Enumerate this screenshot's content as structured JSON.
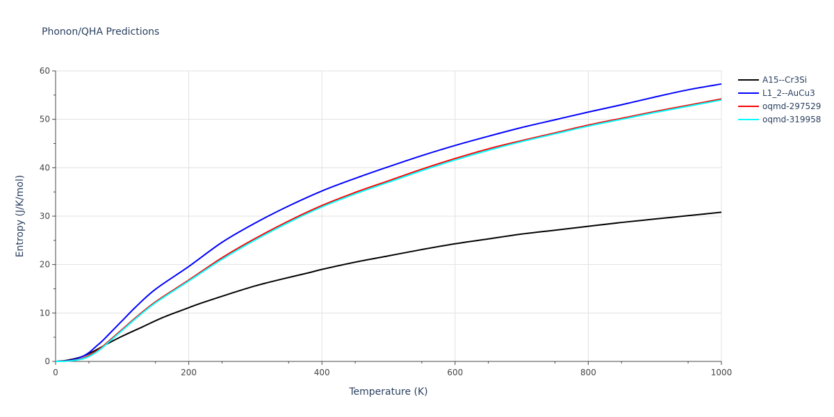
{
  "chart_data": {
    "type": "line",
    "title": "Phonon/QHA Predictions",
    "xlabel": "Temperature (K)",
    "ylabel": "Entropy (J/K/mol)",
    "xlim": [
      0,
      1000
    ],
    "ylim": [
      0,
      60
    ],
    "x_ticks": [
      "0",
      "200",
      "400",
      "600",
      "800",
      "1000"
    ],
    "y_ticks": [
      "0",
      "10",
      "20",
      "30",
      "40",
      "50",
      "60"
    ],
    "grid": true,
    "legend_position": "top-right",
    "series": [
      {
        "name": "A15--Cr3Si",
        "color": "#000000",
        "x": [
          0,
          10,
          20,
          40,
          60,
          80,
          100,
          130,
          160,
          200,
          220,
          260,
          300,
          340,
          380,
          400,
          450,
          500,
          550,
          600,
          650,
          700,
          750,
          800,
          850,
          900,
          950,
          1000
        ],
        "y": [
          0,
          0.1,
          0.3,
          1.0,
          2.3,
          3.8,
          5.2,
          7.1,
          9.0,
          11.1,
          12.1,
          13.9,
          15.6,
          17.0,
          18.3,
          19.0,
          20.5,
          21.8,
          23.1,
          24.3,
          25.3,
          26.3,
          27.1,
          27.9,
          28.7,
          29.4,
          30.1,
          30.8
        ]
      },
      {
        "name": "L1_2--AuCu3",
        "color": "#0000ff",
        "x": [
          0,
          10,
          20,
          30,
          40,
          50,
          60,
          70,
          80,
          100,
          120,
          150,
          200,
          250,
          300,
          350,
          400,
          450,
          500,
          550,
          600,
          650,
          700,
          750,
          800,
          850,
          900,
          950,
          1000
        ],
        "y": [
          0,
          0.05,
          0.2,
          0.5,
          1.0,
          1.8,
          3.0,
          4.2,
          5.6,
          8.4,
          11.2,
          14.9,
          19.6,
          24.6,
          28.6,
          32.1,
          35.2,
          37.8,
          40.2,
          42.5,
          44.6,
          46.5,
          48.3,
          49.9,
          51.5,
          53.0,
          54.6,
          56.1,
          57.3
        ]
      },
      {
        "name": "oqmd-297529",
        "color": "#ff0000",
        "x": [
          0,
          10,
          20,
          30,
          40,
          50,
          60,
          70,
          80,
          100,
          120,
          150,
          200,
          250,
          300,
          350,
          400,
          450,
          500,
          550,
          600,
          650,
          700,
          750,
          800,
          850,
          900,
          950,
          1000
        ],
        "y": [
          0,
          0.03,
          0.1,
          0.3,
          0.6,
          1.2,
          2.0,
          3.0,
          4.2,
          6.6,
          9.0,
          12.3,
          16.8,
          21.4,
          25.4,
          29.0,
          32.2,
          34.9,
          37.3,
          39.7,
          41.9,
          43.9,
          45.6,
          47.2,
          48.8,
          50.2,
          51.6,
          52.9,
          54.2
        ]
      },
      {
        "name": "oqmd-319958",
        "color": "#00ffff",
        "x": [
          0,
          10,
          20,
          30,
          40,
          50,
          60,
          70,
          80,
          100,
          120,
          150,
          200,
          250,
          300,
          350,
          400,
          450,
          500,
          550,
          600,
          650,
          700,
          750,
          800,
          850,
          900,
          950,
          1000
        ],
        "y": [
          0,
          0.02,
          0.08,
          0.25,
          0.5,
          1.0,
          1.8,
          2.8,
          4.0,
          6.4,
          8.8,
          12.1,
          16.6,
          21.1,
          25.1,
          28.7,
          31.9,
          34.6,
          37.0,
          39.4,
          41.6,
          43.6,
          45.4,
          47.0,
          48.6,
          50.0,
          51.4,
          52.7,
          54.0
        ]
      }
    ]
  }
}
